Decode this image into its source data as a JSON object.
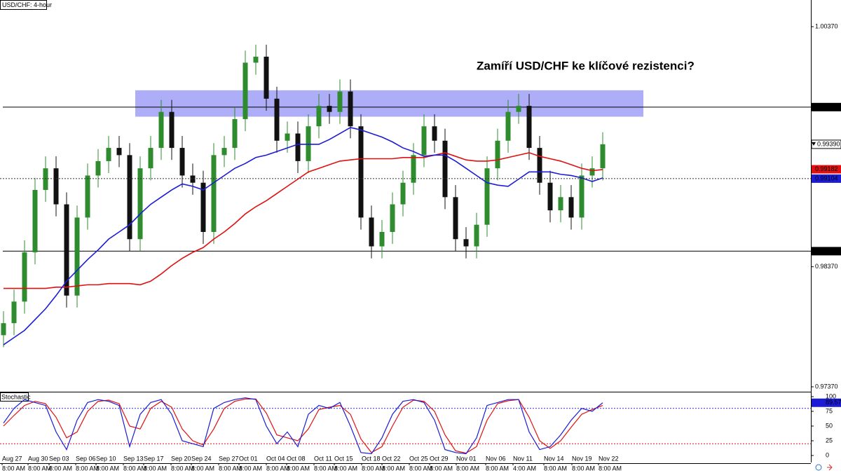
{
  "title": "USD/CHF: 4-hour",
  "annotation": "Zamíří USD/CHF ke klíčové rezistenci?",
  "chart_data": [
    {
      "type": "candlestick",
      "ylim": [
        0.97335,
        1.00592
      ],
      "yticks": [
        {
          "value": 1.0037,
          "label": "1.00370"
        },
        {
          "value": 0.9837,
          "label": "0.98370"
        },
        {
          "value": 0.9737,
          "label": "0.97370"
        }
      ],
      "up_color": "#2e8b2e",
      "down_color": "#111111",
      "open": [
        0.978,
        0.979,
        0.9808,
        0.9849,
        0.9901,
        0.9919,
        0.9889,
        0.9813,
        0.9878,
        0.9913,
        0.9925,
        0.9936,
        0.993,
        0.986,
        0.9919,
        0.9936,
        0.9966,
        0.9936,
        0.9913,
        0.9907,
        0.9866,
        0.993,
        0.9936,
        0.996,
        1.0007,
        1.0012,
        0.9977,
        0.9942,
        0.9948,
        0.9925,
        0.9954,
        0.9971,
        0.9966,
        0.9983,
        0.9954,
        0.9878,
        0.9854,
        0.9866,
        0.9889,
        0.9907,
        0.993,
        0.9954,
        0.9942,
        0.9895,
        0.986,
        0.9854,
        0.9872,
        0.9919,
        0.9942,
        0.9966,
        0.9971,
        0.9936,
        0.9907,
        0.9884,
        0.9895,
        0.9878,
        0.9913,
        0.9919
      ],
      "high": [
        0.98,
        0.9818,
        0.9859,
        0.9911,
        0.9929,
        0.9929,
        0.9899,
        0.9888,
        0.9923,
        0.9935,
        0.9946,
        0.9946,
        0.994,
        0.9929,
        0.9946,
        0.9976,
        0.9976,
        0.9946,
        0.9923,
        0.9917,
        0.994,
        0.9946,
        0.997,
        1.0017,
        1.0022,
        1.0022,
        0.9987,
        0.9958,
        0.9958,
        0.9964,
        0.9981,
        0.9981,
        0.9993,
        0.9993,
        0.9964,
        0.9888,
        0.9876,
        0.9899,
        0.9917,
        0.994,
        0.9964,
        0.9964,
        0.9952,
        0.9905,
        0.987,
        0.9882,
        0.9929,
        0.9952,
        0.9976,
        0.9981,
        0.9981,
        0.9946,
        0.9917,
        0.9905,
        0.9905,
        0.9923,
        0.9929,
        0.9949
      ],
      "low": [
        0.977,
        0.978,
        0.9798,
        0.9839,
        0.9891,
        0.9879,
        0.9803,
        0.9803,
        0.9868,
        0.9903,
        0.9915,
        0.992,
        0.985,
        0.985,
        0.9909,
        0.9926,
        0.9926,
        0.9903,
        0.9897,
        0.9856,
        0.9856,
        0.992,
        0.9926,
        0.995,
        0.9997,
        0.9967,
        0.9932,
        0.9932,
        0.9915,
        0.9915,
        0.9944,
        0.9956,
        0.9956,
        0.9944,
        0.9868,
        0.9844,
        0.9844,
        0.9856,
        0.9879,
        0.9897,
        0.992,
        0.9932,
        0.9885,
        0.985,
        0.9844,
        0.9844,
        0.9862,
        0.9909,
        0.9932,
        0.9956,
        0.9926,
        0.9897,
        0.9874,
        0.9874,
        0.9868,
        0.9868,
        0.9903,
        0.9909
      ],
      "close": [
        0.979,
        0.9808,
        0.9849,
        0.9901,
        0.9919,
        0.9889,
        0.9813,
        0.9878,
        0.9913,
        0.9925,
        0.9936,
        0.993,
        0.986,
        0.9919,
        0.9936,
        0.9966,
        0.9936,
        0.9913,
        0.9907,
        0.9866,
        0.993,
        0.9936,
        0.996,
        1.0007,
        1.0012,
        0.9977,
        0.9942,
        0.9948,
        0.9925,
        0.9954,
        0.9971,
        0.9966,
        0.9983,
        0.9954,
        0.9878,
        0.9854,
        0.9866,
        0.9889,
        0.9907,
        0.993,
        0.9954,
        0.9942,
        0.9895,
        0.986,
        0.9854,
        0.9872,
        0.9919,
        0.9942,
        0.9966,
        0.9971,
        0.9936,
        0.9907,
        0.9884,
        0.9895,
        0.9878,
        0.9913,
        0.9919,
        0.9939
      ],
      "series": [
        {
          "color": "#e01010",
          "values": [
            0.9819,
            0.9819,
            0.9819,
            0.9819,
            0.9819,
            0.982,
            0.982,
            0.9821,
            0.9822,
            0.9822,
            0.9823,
            0.9823,
            0.9823,
            0.9822,
            0.9825,
            0.9831,
            0.9838,
            0.9844,
            0.9849,
            0.9853,
            0.986,
            0.9866,
            0.9873,
            0.9881,
            0.9887,
            0.9892,
            0.9898,
            0.9904,
            0.991,
            0.9916,
            0.9919,
            0.9922,
            0.9925,
            0.9926,
            0.9927,
            0.9927,
            0.9927,
            0.9927,
            0.9928,
            0.9928,
            0.9928,
            0.993,
            0.9932,
            0.9929,
            0.9926,
            0.9925,
            0.9925,
            0.9926,
            0.9928,
            0.993,
            0.9932,
            0.9929,
            0.9927,
            0.9925,
            0.9922,
            0.9919,
            0.9917,
            0.9918
          ],
          "last": {
            "value": 0.99182,
            "label": "0.99182"
          }
        },
        {
          "color": "#1c1cd6",
          "guide": true,
          "values": [
            0.9772,
            0.9778,
            0.9784,
            0.9793,
            0.9802,
            0.9813,
            0.9825,
            0.9834,
            0.9843,
            0.9851,
            0.986,
            0.9866,
            0.9872,
            0.9881,
            0.9889,
            0.9895,
            0.9901,
            0.9906,
            0.9904,
            0.9901,
            0.9907,
            0.9913,
            0.9919,
            0.9923,
            0.9928,
            0.993,
            0.9933,
            0.9936,
            0.9939,
            0.9939,
            0.9939,
            0.9943,
            0.9948,
            0.9953,
            0.9951,
            0.9948,
            0.9945,
            0.9941,
            0.9936,
            0.9933,
            0.9929,
            0.993,
            0.993,
            0.9925,
            0.9919,
            0.9913,
            0.9907,
            0.9905,
            0.9904,
            0.991,
            0.9916,
            0.9916,
            0.9916,
            0.9914,
            0.9913,
            0.9911,
            0.9908,
            0.9911
          ],
          "last": {
            "value": 0.99104,
            "label": "0.99104"
          }
        }
      ],
      "last_price": {
        "value": 0.9939,
        "label": "0.99390"
      },
      "hlines": [
        {
          "value": 0.997,
          "label": "0.99700"
        },
        {
          "value": 0.985,
          "label": "0.98500"
        }
      ],
      "zone": {
        "range": [
          0.9962,
          0.9984
        ],
        "color": "#8c8cf5"
      },
      "x_labels": [
        {
          "date": "Aug 27",
          "time": "8:00 AM"
        },
        {
          "date": "Aug 30",
          "time": "8:00 AM"
        },
        {
          "date": "Sep 03",
          "time": "8:00 AM"
        },
        {
          "date": "Sep 06",
          "time": "8:00 AM"
        },
        {
          "date": "Sep 10",
          "time": "8:00 AM"
        },
        {
          "date": "Sep 13",
          "time": "8:00 AM"
        },
        {
          "date": "Sep 17",
          "time": "8:00 AM"
        },
        {
          "date": "Sep 20",
          "time": "8:00 AM"
        },
        {
          "date": "Sep 24",
          "time": "8:00 AM"
        },
        {
          "date": "Sep 27",
          "time": "8:00 AM"
        },
        {
          "date": "Oct 01",
          "time": "8:00 AM"
        },
        {
          "date": "Oct 04",
          "time": "8:00 AM"
        },
        {
          "date": "Oct 08",
          "time": "8:00 AM"
        },
        {
          "date": "Oct 11",
          "time": "8:00 AM"
        },
        {
          "date": "Oct 15",
          "time": "8:00 AM"
        },
        {
          "date": "Oct 18",
          "time": "8:00 AM"
        },
        {
          "date": "Oct 22",
          "time": "8:00 AM"
        },
        {
          "date": "Oct 25",
          "time": "8:00 AM"
        },
        {
          "date": "Oct 29",
          "time": "8:00 AM"
        },
        {
          "date": "Nov 01",
          "time": "8:00 AM"
        },
        {
          "date": "Nov 06",
          "time": "8:00 AM"
        },
        {
          "date": "Nov 11",
          "time": "4:00 AM"
        },
        {
          "date": "Nov 14",
          "time": "8:00 AM"
        },
        {
          "date": "Nov 19",
          "time": "8:00 AM"
        },
        {
          "date": "Nov 22",
          "time": "8:00 AM"
        }
      ]
    },
    {
      "type": "stochastic",
      "title": "Stochastic",
      "ylim": [
        0,
        100
      ],
      "yticks": [
        0,
        25,
        50,
        75,
        100
      ],
      "levels": [
        {
          "value": 80,
          "color": "#3333cc"
        },
        {
          "value": 20,
          "color": "#e01010"
        }
      ],
      "series": [
        {
          "color": "#1c1cd6",
          "values": [
            55,
            80,
            95,
            90,
            85,
            40,
            10,
            60,
            90,
            95,
            92,
            85,
            15,
            70,
            90,
            95,
            70,
            25,
            20,
            15,
            80,
            90,
            95,
            98,
            95,
            50,
            20,
            40,
            15,
            70,
            85,
            80,
            90,
            50,
            5,
            3,
            30,
            70,
            92,
            95,
            90,
            60,
            10,
            5,
            3,
            30,
            85,
            90,
            95,
            95,
            40,
            10,
            15,
            35,
            60,
            80,
            75,
            89.57
          ]
        },
        {
          "color": "#e01010",
          "values": [
            50,
            68,
            85,
            92,
            88,
            65,
            30,
            40,
            75,
            92,
            94,
            88,
            50,
            45,
            80,
            92,
            82,
            45,
            25,
            18,
            45,
            80,
            92,
            96,
            96,
            72,
            35,
            30,
            25,
            45,
            78,
            82,
            85,
            70,
            28,
            5,
            15,
            50,
            82,
            94,
            92,
            75,
            35,
            8,
            4,
            15,
            60,
            88,
            93,
            95,
            65,
            25,
            12,
            25,
            48,
            70,
            78,
            85
          ]
        }
      ]
    }
  ]
}
